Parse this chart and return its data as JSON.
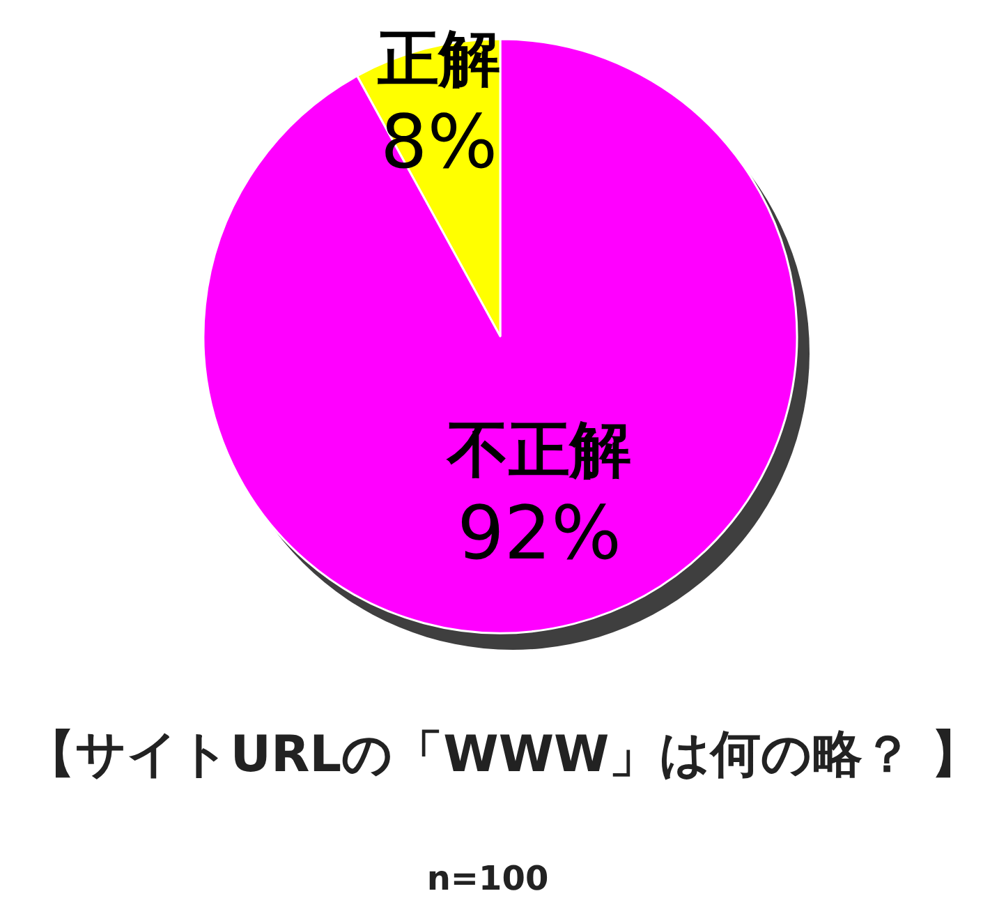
{
  "chart_data": {
    "type": "pie",
    "title": "【サイトURLの「WWW」は何の略？ 】",
    "categories": [
      "不正解",
      "正解"
    ],
    "values": [
      92,
      8
    ],
    "value_labels": [
      "92%",
      "8%"
    ],
    "colors": [
      "#ff00ff",
      "#ffff00"
    ],
    "annotations": [
      "n=100"
    ]
  }
}
